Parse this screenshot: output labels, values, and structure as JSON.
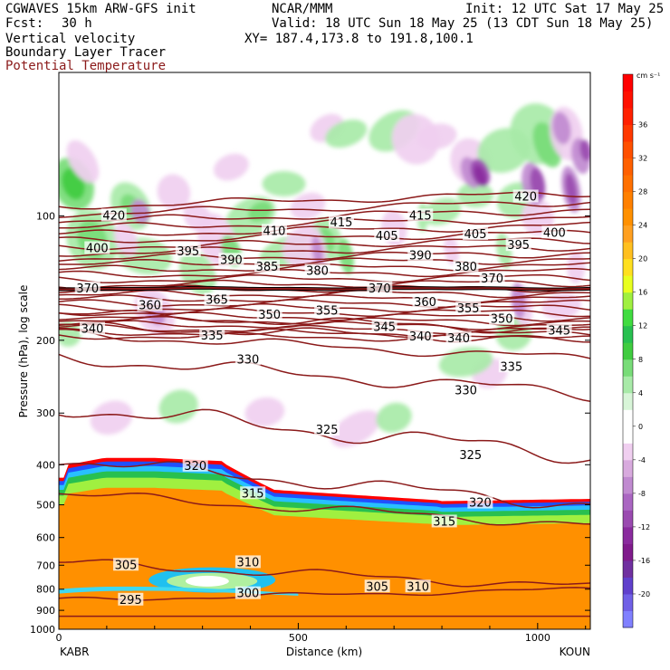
{
  "header": {
    "model": "CGWAVES 15km ARW-GFS init",
    "org": "NCAR/MMM",
    "init": "Init: 12 UTC Sat 17 May 25",
    "fcst_label": "Fcst:",
    "fcst_value": "30 h",
    "valid": "Valid: 18 UTC Sun 18 May 25 (13 CDT Sun 18 May 25)",
    "field1": "Vertical velocity",
    "field2": "Boundary Layer Tracer",
    "field3": "Potential Temperature",
    "xy": "XY= 187.4,173.8 to 191.8,100.1",
    "field3_color": "#8b1a1a"
  },
  "colorbar": {
    "units": "cm s⁻¹",
    "levels": [
      -24,
      -22,
      -20,
      -18,
      -16,
      -14,
      -12,
      -10,
      -8,
      -6,
      -4,
      -2,
      0,
      2,
      4,
      6,
      8,
      10,
      12,
      14,
      16,
      18,
      20,
      22,
      24,
      26,
      28,
      30,
      32,
      34,
      36,
      38,
      40,
      42
    ],
    "labels": [
      "-20",
      "-16",
      "-12",
      "-8",
      "-4",
      "0",
      "4",
      "8",
      "12",
      "16",
      "20",
      "24",
      "28",
      "32",
      "36"
    ],
    "colors": [
      "#8080ff",
      "#7060e6",
      "#6040cc",
      "#7030a0",
      "#801b8c",
      "#8a2b9e",
      "#9a4ab0",
      "#aa66c2",
      "#c08ad0",
      "#d8aade",
      "#f0cff0",
      "#ffffff",
      "#ffffff",
      "#d8f5d8",
      "#a8eaa8",
      "#78dc78",
      "#40cc40",
      "#28c050",
      "#40dc40",
      "#a0f040",
      "#e8ff20",
      "#ffe020",
      "#ffc020",
      "#ffa020",
      "#ff9000",
      "#ff8000",
      "#ff7000",
      "#ff6000",
      "#ff5000",
      "#ff3800",
      "#ff2000",
      "#ff1000",
      "#ff0000"
    ]
  },
  "chart_data": {
    "type": "contour",
    "x_axis": {
      "label": "Distance (km)",
      "ticks": [
        "0",
        "500",
        "1000"
      ],
      "tick_values": [
        0,
        500,
        1000
      ],
      "range": [
        0,
        1110
      ],
      "left_endpoint": "KABR",
      "right_endpoint": "KOUN"
    },
    "y_axis": {
      "label": "Pressure (hPa), log scale",
      "scale": "log",
      "ticks": [
        "100",
        "200",
        "300",
        "400",
        "500",
        "600",
        "700",
        "800",
        "900",
        "1000"
      ],
      "tick_values": [
        100,
        200,
        300,
        400,
        500,
        600,
        700,
        800,
        900,
        1000
      ],
      "range": [
        1000,
        45
      ],
      "inverted": true
    },
    "filled_field": "Vertical velocity",
    "filled_units": "cm s⁻¹",
    "line_field": "Potential Temperature",
    "line_color": "#8b1a1a",
    "theta_labels": [
      {
        "text": "420",
        "x": 115,
        "p": 100
      },
      {
        "text": "410",
        "x": 450,
        "p": 109
      },
      {
        "text": "415",
        "x": 590,
        "p": 104
      },
      {
        "text": "415",
        "x": 755,
        "p": 100
      },
      {
        "text": "420",
        "x": 975,
        "p": 90
      },
      {
        "text": "400",
        "x": 80,
        "p": 120
      },
      {
        "text": "395",
        "x": 270,
        "p": 122
      },
      {
        "text": "390",
        "x": 360,
        "p": 128
      },
      {
        "text": "385",
        "x": 435,
        "p": 133
      },
      {
        "text": "380",
        "x": 540,
        "p": 136
      },
      {
        "text": "405",
        "x": 685,
        "p": 112
      },
      {
        "text": "405",
        "x": 870,
        "p": 111
      },
      {
        "text": "400",
        "x": 1035,
        "p": 110
      },
      {
        "text": "395",
        "x": 960,
        "p": 118
      },
      {
        "text": "390",
        "x": 755,
        "p": 125
      },
      {
        "text": "380",
        "x": 850,
        "p": 133
      },
      {
        "text": "370",
        "x": 905,
        "p": 142
      },
      {
        "text": "370",
        "x": 60,
        "p": 150
      },
      {
        "text": "370",
        "x": 670,
        "p": 150
      },
      {
        "text": "360",
        "x": 190,
        "p": 165
      },
      {
        "text": "365",
        "x": 330,
        "p": 160
      },
      {
        "text": "360",
        "x": 765,
        "p": 162
      },
      {
        "text": "355",
        "x": 855,
        "p": 168
      },
      {
        "text": "355",
        "x": 560,
        "p": 170
      },
      {
        "text": "350",
        "x": 440,
        "p": 174
      },
      {
        "text": "350",
        "x": 925,
        "p": 178
      },
      {
        "text": "345",
        "x": 680,
        "p": 186
      },
      {
        "text": "340",
        "x": 70,
        "p": 188
      },
      {
        "text": "340",
        "x": 755,
        "p": 196
      },
      {
        "text": "340",
        "x": 835,
        "p": 198
      },
      {
        "text": "345",
        "x": 1045,
        "p": 190
      },
      {
        "text": "335",
        "x": 320,
        "p": 195
      },
      {
        "text": "335",
        "x": 945,
        "p": 232
      },
      {
        "text": "330",
        "x": 395,
        "p": 223
      },
      {
        "text": "330",
        "x": 850,
        "p": 265
      },
      {
        "text": "325",
        "x": 560,
        "p": 330
      },
      {
        "text": "325",
        "x": 860,
        "p": 380
      },
      {
        "text": "320",
        "x": 285,
        "p": 403
      },
      {
        "text": "320",
        "x": 880,
        "p": 495
      },
      {
        "text": "315",
        "x": 405,
        "p": 470
      },
      {
        "text": "315",
        "x": 805,
        "p": 550
      },
      {
        "text": "310",
        "x": 395,
        "p": 690
      },
      {
        "text": "310",
        "x": 750,
        "p": 790
      },
      {
        "text": "305",
        "x": 140,
        "p": 700
      },
      {
        "text": "305",
        "x": 665,
        "p": 790
      },
      {
        "text": "300",
        "x": 395,
        "p": 820
      },
      {
        "text": "295",
        "x": 150,
        "p": 850
      }
    ]
  }
}
